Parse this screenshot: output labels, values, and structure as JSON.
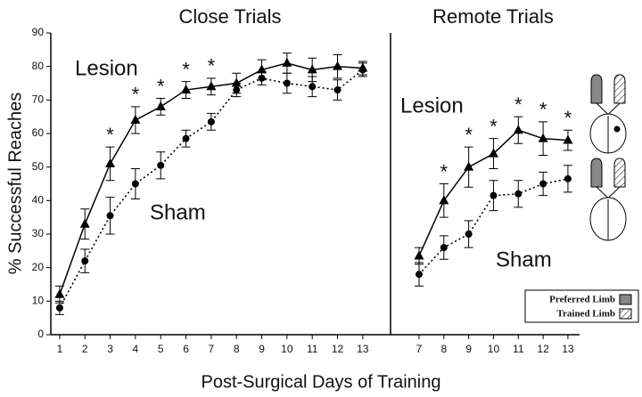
{
  "chart_data": [
    {
      "type": "line",
      "title": "Close Trials",
      "ylabel": "% Successful Reaches",
      "xlabel": "Post-Surgical Days of Training",
      "x": [
        1,
        2,
        3,
        4,
        5,
        6,
        7,
        8,
        9,
        10,
        11,
        12,
        13
      ],
      "xlim": [
        0.65,
        14.1
      ],
      "xticks": [
        1,
        2,
        3,
        4,
        5,
        6,
        7,
        8,
        9,
        10,
        11,
        12,
        13
      ],
      "ylim": [
        0,
        90
      ],
      "yticks": [
        0,
        10,
        20,
        30,
        40,
        50,
        60,
        70,
        80,
        90
      ],
      "significance_marker": "*",
      "significant_x": [
        3,
        4,
        5,
        6,
        7
      ],
      "series": [
        {
          "name": "Lesion",
          "color": "#000000",
          "marker": "triangle",
          "linestyle": "solid",
          "values": [
            12,
            33,
            51,
            64,
            68,
            73,
            74,
            75,
            79,
            81,
            79,
            80,
            79.5
          ],
          "errors": [
            2.5,
            4.5,
            5,
            4,
            2.5,
            2.5,
            2.5,
            3,
            3,
            3,
            3.5,
            3.5,
            2
          ]
        },
        {
          "name": "Sham",
          "color": "#000000",
          "marker": "circle",
          "linestyle": "dotted",
          "values": [
            8,
            22,
            35.5,
            45,
            50.5,
            58.5,
            63.5,
            73,
            76.5,
            75,
            74,
            73,
            79
          ],
          "errors": [
            2,
            3.5,
            5.5,
            4.5,
            4,
            2.5,
            2.5,
            2,
            2,
            3,
            3,
            3,
            2
          ]
        }
      ]
    },
    {
      "type": "line",
      "title": "Remote Trials",
      "x": [
        7,
        8,
        9,
        10,
        11,
        12,
        13
      ],
      "xlim": [
        5.85,
        13.47
      ],
      "xticks": [
        7,
        8,
        9,
        10,
        11,
        12,
        13
      ],
      "ylim": [
        0,
        90
      ],
      "significance_marker": "*",
      "significant_x": [
        8,
        9,
        10,
        11,
        12,
        13
      ],
      "series": [
        {
          "name": "Lesion",
          "color": "#000000",
          "marker": "triangle",
          "linestyle": "solid",
          "values": [
            23.5,
            40,
            50,
            54,
            61,
            58.5,
            58
          ],
          "errors": [
            2.5,
            5,
            6,
            4.5,
            4,
            5,
            3
          ]
        },
        {
          "name": "Sham",
          "color": "#000000",
          "marker": "circle",
          "linestyle": "dotted",
          "values": [
            18,
            26,
            30,
            41.5,
            42,
            45,
            46.5
          ],
          "errors": [
            3.5,
            3.5,
            4,
            4.5,
            4,
            3.5,
            4
          ]
        }
      ]
    }
  ],
  "limb_legend": [
    "Preferred Limb",
    "Trained Limb"
  ]
}
